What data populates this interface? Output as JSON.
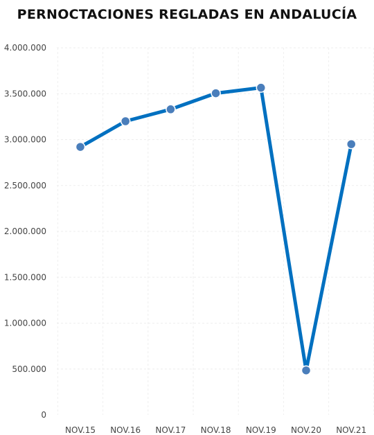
{
  "chart_data": {
    "type": "line",
    "title": "PERNOCTACIONES REGLADAS EN ANDALUCÍA",
    "categories": [
      "NOV.15",
      "NOV.16",
      "NOV.17",
      "NOV.18",
      "NOV.19",
      "NOV.20",
      "NOV.21"
    ],
    "series": [
      {
        "values": [
          2920000,
          3200000,
          3330000,
          3505000,
          3565000,
          485000,
          2950000
        ]
      }
    ],
    "yticks": [
      0,
      500000,
      1000000,
      1500000,
      2000000,
      2500000,
      3000000,
      3500000,
      4000000
    ],
    "ytick_labels": [
      "0",
      "500.000",
      "1.000.000",
      "1.500.000",
      "2.000.000",
      "2.500.000",
      "3.000.000",
      "3.500.000",
      "4.000.000"
    ],
    "ylim": [
      0,
      4000000
    ],
    "grid": true,
    "legend": "none",
    "colors": {
      "line": "#0070c0",
      "marker": "#4a7ebb",
      "marker_edge": "#ffffff",
      "grid": "#eeeeee"
    }
  }
}
